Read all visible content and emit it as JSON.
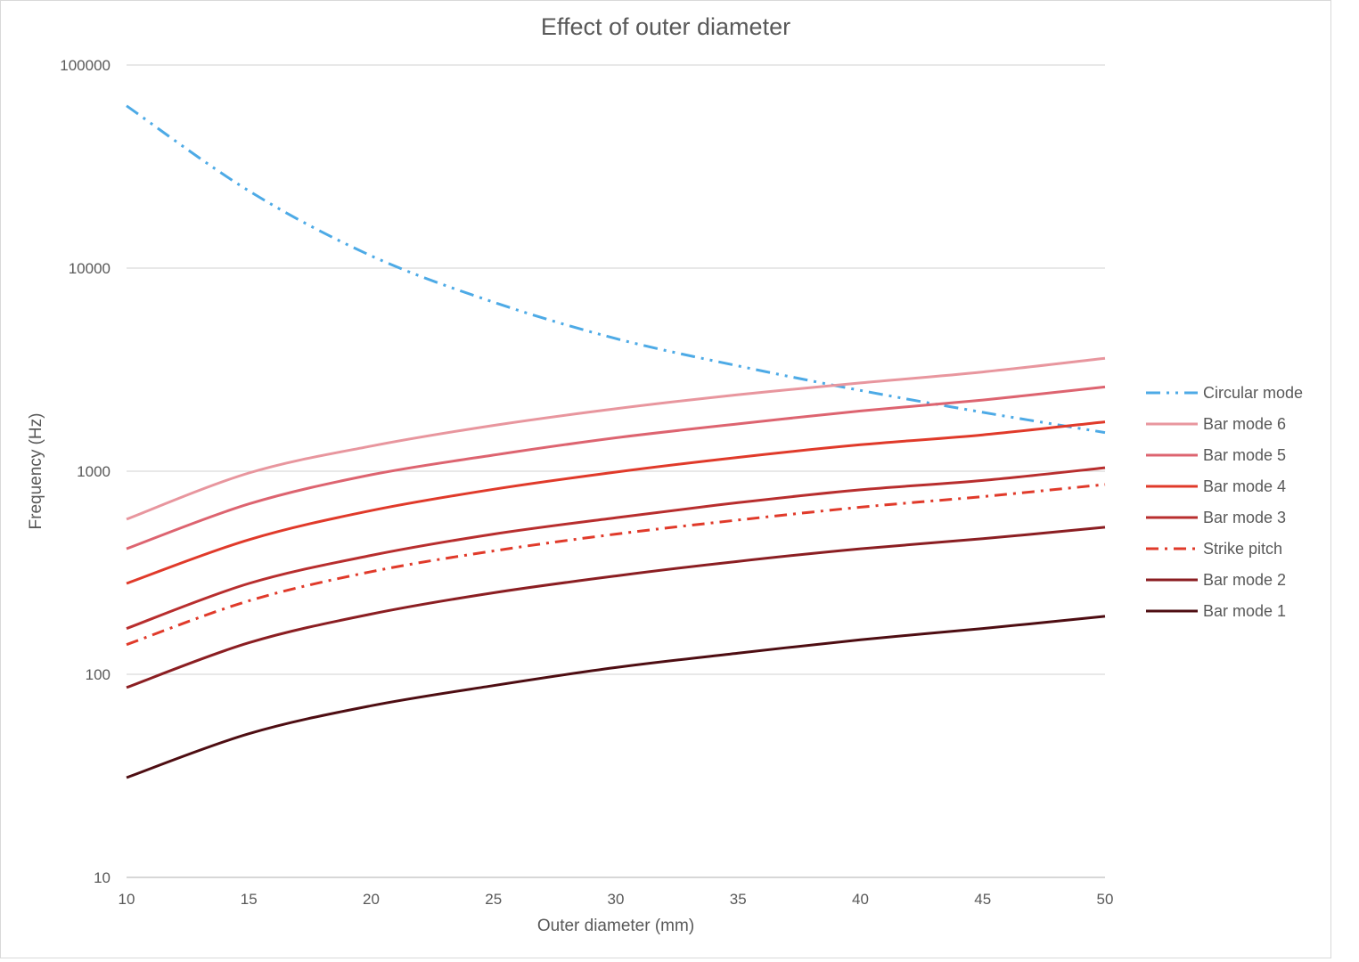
{
  "chart_data": {
    "type": "line",
    "title": "Effect of outer diameter",
    "xlabel": "Outer diameter (mm)",
    "ylabel": "Frequency (Hz)",
    "xlim": [
      10,
      50
    ],
    "ylim": [
      10,
      100000
    ],
    "yscale": "log",
    "grid": "horizontal",
    "legend_position": "right",
    "x_ticks": [
      "10",
      "15",
      "20",
      "25",
      "30",
      "35",
      "40",
      "45",
      "50"
    ],
    "y_ticks": [
      "10",
      "100",
      "1000",
      "10000",
      "100000"
    ],
    "x": [
      10,
      15,
      20,
      25,
      30,
      35,
      40,
      45,
      50
    ],
    "series": [
      {
        "name": "Circular mode",
        "color": "#4daae6",
        "dash": "dash-dot-dot",
        "values": [
          63000,
          24000,
          11500,
          6800,
          4500,
          3300,
          2500,
          1950,
          1550
        ]
      },
      {
        "name": "Bar mode 6",
        "color": "#e8969e",
        "dash": "solid",
        "values": [
          580,
          980,
          1330,
          1680,
          2030,
          2380,
          2720,
          3080,
          3600
        ]
      },
      {
        "name": "Bar mode 5",
        "color": "#dd6470",
        "dash": "solid",
        "values": [
          415,
          690,
          960,
          1200,
          1460,
          1710,
          1980,
          2240,
          2600
        ]
      },
      {
        "name": "Bar mode 4",
        "color": "#e03a2a",
        "dash": "solid",
        "values": [
          280,
          460,
          640,
          815,
          990,
          1170,
          1350,
          1510,
          1750
        ]
      },
      {
        "name": "Bar mode 3",
        "color": "#b82e2e",
        "dash": "solid",
        "values": [
          168,
          280,
          385,
          490,
          590,
          700,
          810,
          900,
          1040
        ]
      },
      {
        "name": "Strike pitch",
        "color": "#e03a2a",
        "dash": "dash-dot",
        "values": [
          140,
          230,
          320,
          405,
          490,
          575,
          665,
          750,
          860
        ]
      },
      {
        "name": "Bar mode 2",
        "color": "#8b1e22",
        "dash": "solid",
        "values": [
          86,
          143,
          198,
          252,
          305,
          360,
          415,
          465,
          530
        ]
      },
      {
        "name": "Bar mode 1",
        "color": "#4e0d12",
        "dash": "solid",
        "values": [
          31,
          51,
          70,
          88,
          108,
          127,
          148,
          168,
          193
        ]
      }
    ]
  }
}
